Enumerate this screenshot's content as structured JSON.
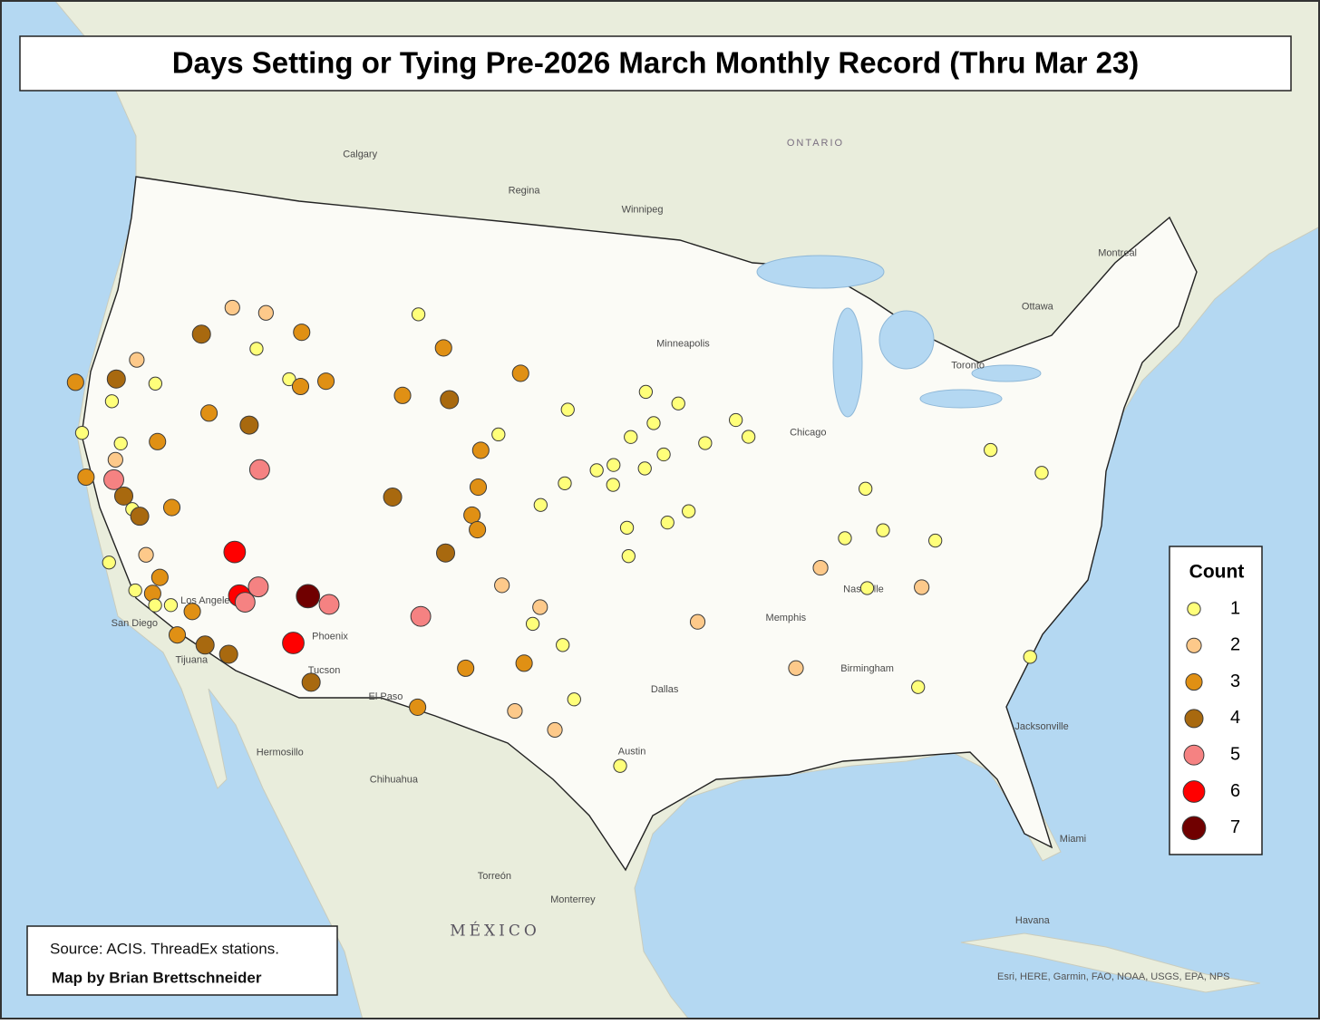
{
  "title": "Days Setting or Tying Pre-2026 March Monthly Record (Thru Mar 23)",
  "legend": {
    "title": "Count",
    "levels": [
      1,
      2,
      3,
      4,
      5,
      6,
      7
    ],
    "colors": [
      "#ffff7a",
      "#fdc98a",
      "#e09014",
      "#a8690f",
      "#f58282",
      "#ff0000",
      "#700000"
    ]
  },
  "source": "Source: ACIS. ThreadEx stations.",
  "credit": "Map by Brian Brettschneider",
  "attribution": "Esri, HERE, Garmin, FAO, NOAA, USGS, EPA, NPS",
  "places": [
    {
      "text": "Calgary",
      "lon": -114.2,
      "lat": 50.9,
      "kind": "place"
    },
    {
      "text": "Regina",
      "lon": -105.3,
      "lat": 50.2,
      "kind": "place"
    },
    {
      "text": "Winnipeg",
      "lon": -99.3,
      "lat": 49.7,
      "kind": "place"
    },
    {
      "text": "ONTARIO",
      "lon": -90.5,
      "lat": 52.0,
      "kind": "region"
    },
    {
      "text": "Ottawa",
      "lon": -79.0,
      "lat": 45.6,
      "kind": "place"
    },
    {
      "text": "Montreal",
      "lon": -74.8,
      "lat": 47.1,
      "kind": "place"
    },
    {
      "text": "Toronto",
      "lon": -82.8,
      "lat": 43.8,
      "kind": "place"
    },
    {
      "text": "Chicago",
      "lon": -90.9,
      "lat": 41.8,
      "kind": "place"
    },
    {
      "text": "Minneapolis",
      "lon": -97.4,
      "lat": 45.0,
      "kind": "place"
    },
    {
      "text": "Phoenix",
      "lon": -112.8,
      "lat": 33.9,
      "kind": "place"
    },
    {
      "text": "Tucson",
      "lon": -112.8,
      "lat": 32.7,
      "kind": "place"
    },
    {
      "text": "El Paso",
      "lon": -110.0,
      "lat": 32.0,
      "kind": "place"
    },
    {
      "text": "Dallas",
      "lon": -97.5,
      "lat": 32.8,
      "kind": "place"
    },
    {
      "text": "Austin",
      "lon": -98.9,
      "lat": 30.6,
      "kind": "place"
    },
    {
      "text": "Memphis",
      "lon": -92.3,
      "lat": 35.3,
      "kind": "place"
    },
    {
      "text": "Nashville",
      "lon": -88.7,
      "lat": 36.2,
      "kind": "place"
    },
    {
      "text": "Birmingham",
      "lon": -89.0,
      "lat": 33.4,
      "kind": "place"
    },
    {
      "text": "Jacksonville",
      "lon": -81.5,
      "lat": 30.9,
      "kind": "place"
    },
    {
      "text": "Miami",
      "lon": -80.1,
      "lat": 26.8,
      "kind": "place"
    },
    {
      "text": "Hermosillo",
      "lon": -114.6,
      "lat": 29.6,
      "kind": "place"
    },
    {
      "text": "Chihuahua",
      "lon": -109.6,
      "lat": 29.1,
      "kind": "place"
    },
    {
      "text": "Torreón",
      "lon": -104.7,
      "lat": 26.0,
      "kind": "place"
    },
    {
      "text": "Monterrey",
      "lon": -101.6,
      "lat": 25.3,
      "kind": "place"
    },
    {
      "text": "MÉXICO",
      "lon": -105.7,
      "lat": 24.0,
      "kind": "country"
    },
    {
      "text": "Havana",
      "lon": -82.3,
      "lat": 24.1,
      "kind": "place"
    },
    {
      "text": "Los Angeles",
      "lon": -118.9,
      "lat": 34.5,
      "kind": "place"
    },
    {
      "text": "San Diego",
      "lon": -121.8,
      "lat": 33.3,
      "kind": "place"
    },
    {
      "text": "Tijuana",
      "lon": -118.7,
      "lat": 32.4,
      "kind": "place"
    }
  ],
  "stations": [
    {
      "lon": -118.7,
      "lat": 45.0,
      "count": 2
    },
    {
      "lon": -117.0,
      "lat": 45.0,
      "count": 2
    },
    {
      "lon": -120.0,
      "lat": 43.9,
      "count": 4
    },
    {
      "lon": -115.1,
      "lat": 44.5,
      "count": 3
    },
    {
      "lon": -117.2,
      "lat": 43.7,
      "count": 1
    },
    {
      "lon": -122.9,
      "lat": 42.6,
      "count": 2
    },
    {
      "lon": -125.6,
      "lat": 41.4,
      "count": 3
    },
    {
      "lon": -123.7,
      "lat": 41.8,
      "count": 4
    },
    {
      "lon": -121.8,
      "lat": 41.9,
      "count": 1
    },
    {
      "lon": -123.7,
      "lat": 41.0,
      "count": 1
    },
    {
      "lon": -115.4,
      "lat": 42.8,
      "count": 1
    },
    {
      "lon": -114.8,
      "lat": 42.6,
      "count": 3
    },
    {
      "lon": -113.6,
      "lat": 42.9,
      "count": 3
    },
    {
      "lon": -119.0,
      "lat": 41.2,
      "count": 3
    },
    {
      "lon": -117.0,
      "lat": 41.0,
      "count": 4
    },
    {
      "lon": -124.8,
      "lat": 39.7,
      "count": 1
    },
    {
      "lon": -121.2,
      "lat": 39.9,
      "count": 3
    },
    {
      "lon": -122.9,
      "lat": 39.6,
      "count": 1
    },
    {
      "lon": -123.0,
      "lat": 39.0,
      "count": 2
    },
    {
      "lon": -124.2,
      "lat": 38.2,
      "count": 3
    },
    {
      "lon": -122.9,
      "lat": 38.3,
      "count": 5
    },
    {
      "lon": -116.2,
      "lat": 39.5,
      "count": 5
    },
    {
      "lon": -122.3,
      "lat": 37.8,
      "count": 4
    },
    {
      "lon": -121.8,
      "lat": 37.4,
      "count": 1
    },
    {
      "lon": -121.4,
      "lat": 37.2,
      "count": 4
    },
    {
      "lon": -120.0,
      "lat": 37.7,
      "count": 3
    },
    {
      "lon": -116.8,
      "lat": 36.5,
      "count": 6
    },
    {
      "lon": -120.8,
      "lat": 35.9,
      "count": 2
    },
    {
      "lon": -122.4,
      "lat": 35.4,
      "count": 1
    },
    {
      "lon": -120.0,
      "lat": 35.2,
      "count": 3
    },
    {
      "lon": -115.5,
      "lat": 35.4,
      "count": 5
    },
    {
      "lon": -116.3,
      "lat": 35.0,
      "count": 6
    },
    {
      "lon": -121.0,
      "lat": 34.6,
      "count": 1
    },
    {
      "lon": -120.2,
      "lat": 34.6,
      "count": 3
    },
    {
      "lon": -116.0,
      "lat": 34.8,
      "count": 5
    },
    {
      "lon": -113.2,
      "lat": 35.3,
      "count": 7
    },
    {
      "lon": -112.2,
      "lat": 35.1,
      "count": 5
    },
    {
      "lon": -120.0,
      "lat": 34.2,
      "count": 1
    },
    {
      "lon": -119.3,
      "lat": 34.3,
      "count": 1
    },
    {
      "lon": -118.3,
      "lat": 34.2,
      "count": 3
    },
    {
      "lon": -118.8,
      "lat": 33.3,
      "count": 3
    },
    {
      "lon": -117.5,
      "lat": 33.1,
      "count": 4
    },
    {
      "lon": -116.4,
      "lat": 32.9,
      "count": 4
    },
    {
      "lon": -113.6,
      "lat": 33.6,
      "count": 6
    },
    {
      "lon": -112.6,
      "lat": 32.3,
      "count": 4
    },
    {
      "lon": -109.4,
      "lat": 45.6,
      "count": 1
    },
    {
      "lon": -108.0,
      "lat": 44.5,
      "count": 3
    },
    {
      "lon": -104.1,
      "lat": 43.8,
      "count": 3
    },
    {
      "lon": -109.8,
      "lat": 42.7,
      "count": 3
    },
    {
      "lon": -107.5,
      "lat": 42.7,
      "count": 4
    },
    {
      "lon": -101.7,
      "lat": 42.6,
      "count": 1
    },
    {
      "lon": -97.9,
      "lat": 43.3,
      "count": 1
    },
    {
      "lon": -96.3,
      "lat": 42.9,
      "count": 1
    },
    {
      "lon": -97.5,
      "lat": 42.2,
      "count": 1
    },
    {
      "lon": -93.5,
      "lat": 42.3,
      "count": 1
    },
    {
      "lon": -98.6,
      "lat": 41.7,
      "count": 1
    },
    {
      "lon": -95.0,
      "lat": 41.5,
      "count": 1
    },
    {
      "lon": -92.9,
      "lat": 41.7,
      "count": 1
    },
    {
      "lon": -97.0,
      "lat": 41.1,
      "count": 1
    },
    {
      "lon": -105.0,
      "lat": 41.6,
      "count": 1
    },
    {
      "lon": -105.8,
      "lat": 41.0,
      "count": 3
    },
    {
      "lon": -99.4,
      "lat": 40.7,
      "count": 1
    },
    {
      "lon": -100.2,
      "lat": 40.5,
      "count": 1
    },
    {
      "lon": -97.9,
      "lat": 40.6,
      "count": 1
    },
    {
      "lon": -101.7,
      "lat": 40.0,
      "count": 1
    },
    {
      "lon": -99.4,
      "lat": 40.0,
      "count": 1
    },
    {
      "lon": -105.8,
      "lat": 39.7,
      "count": 3
    },
    {
      "lon": -109.8,
      "lat": 39.1,
      "count": 4
    },
    {
      "lon": -106.0,
      "lat": 38.7,
      "count": 3
    },
    {
      "lon": -105.7,
      "lat": 38.2,
      "count": 3
    },
    {
      "lon": -102.8,
      "lat": 39.2,
      "count": 1
    },
    {
      "lon": -95.8,
      "lat": 39.1,
      "count": 1
    },
    {
      "lon": -96.8,
      "lat": 38.7,
      "count": 1
    },
    {
      "lon": -98.7,
      "lat": 38.5,
      "count": 1
    },
    {
      "lon": -98.6,
      "lat": 37.5,
      "count": 1
    },
    {
      "lon": -107.1,
      "lat": 37.3,
      "count": 4
    },
    {
      "lon": -104.4,
      "lat": 36.3,
      "count": 2
    },
    {
      "lon": -108.0,
      "lat": 35.0,
      "count": 5
    },
    {
      "lon": -102.6,
      "lat": 35.6,
      "count": 2
    },
    {
      "lon": -102.9,
      "lat": 35.0,
      "count": 1
    },
    {
      "lon": -101.5,
      "lat": 34.3,
      "count": 1
    },
    {
      "lon": -95.4,
      "lat": 35.2,
      "count": 2
    },
    {
      "lon": -103.2,
      "lat": 33.6,
      "count": 3
    },
    {
      "lon": -105.8,
      "lat": 33.3,
      "count": 3
    },
    {
      "lon": -100.9,
      "lat": 32.4,
      "count": 1
    },
    {
      "lon": -107.8,
      "lat": 31.8,
      "count": 3
    },
    {
      "lon": -103.5,
      "lat": 31.9,
      "count": 2
    },
    {
      "lon": -101.7,
      "lat": 31.3,
      "count": 2
    },
    {
      "lon": -98.8,
      "lat": 30.1,
      "count": 1
    },
    {
      "lon": -89.7,
      "lat": 37.0,
      "count": 2
    },
    {
      "lon": -87.6,
      "lat": 36.2,
      "count": 1
    },
    {
      "lon": -85.1,
      "lat": 36.1,
      "count": 2
    },
    {
      "lon": -87.4,
      "lat": 39.7,
      "count": 1
    },
    {
      "lon": -88.5,
      "lat": 38.0,
      "count": 1
    },
    {
      "lon": -86.7,
      "lat": 38.2,
      "count": 1
    },
    {
      "lon": -84.3,
      "lat": 37.7,
      "count": 1
    },
    {
      "lon": -81.3,
      "lat": 40.7,
      "count": 1
    },
    {
      "lon": -79.0,
      "lat": 39.7,
      "count": 1
    },
    {
      "lon": -91.0,
      "lat": 33.5,
      "count": 2
    },
    {
      "lon": -85.6,
      "lat": 32.6,
      "count": 1
    },
    {
      "lon": -80.5,
      "lat": 33.3,
      "count": 1
    }
  ]
}
